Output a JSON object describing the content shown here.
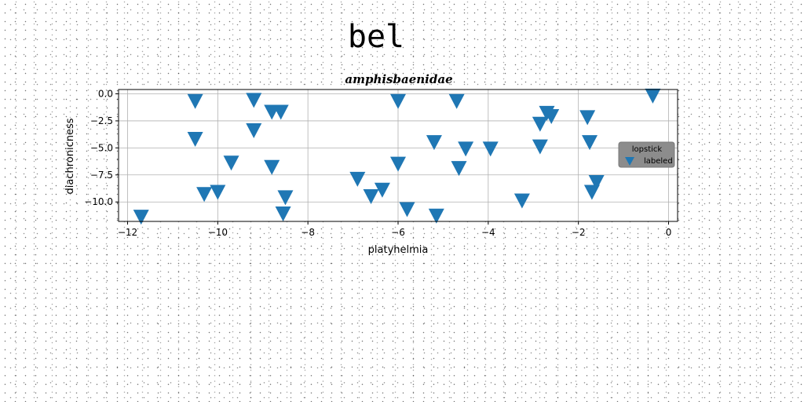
{
  "suptitle": "bel",
  "chart_data": {
    "type": "scatter",
    "title": "amphisbaenidae",
    "xlabel": "platyhelmia",
    "ylabel": "diachronicness",
    "xlim": [
      -12.2,
      0.2
    ],
    "ylim": [
      -11.8,
      0.4
    ],
    "xticks": [
      -12,
      -10,
      -8,
      -6,
      -4,
      -2,
      0
    ],
    "yticks": [
      0.0,
      -2.5,
      -5.0,
      -7.5,
      -10.0
    ],
    "xtick_labels": [
      "−12",
      "−10",
      "−8",
      "−6",
      "−4",
      "−2",
      "0"
    ],
    "ytick_labels": [
      "0.0",
      "−2.5",
      "−5.0",
      "−7.5",
      "−10.0"
    ],
    "grid": true,
    "marker": "triangle-down",
    "color": "#1f77b4",
    "legend": {
      "title": "lopstick",
      "placement": "center-right",
      "background": "#8c8c8c"
    },
    "series": [
      {
        "name": "labeled",
        "points": [
          [
            -11.7,
            -11.3
          ],
          [
            -10.5,
            -0.6
          ],
          [
            -10.5,
            -4.1
          ],
          [
            -10.3,
            -9.2
          ],
          [
            -10.0,
            -9.0
          ],
          [
            -9.7,
            -6.3
          ],
          [
            -9.2,
            -0.5
          ],
          [
            -9.2,
            -3.3
          ],
          [
            -8.8,
            -1.6
          ],
          [
            -8.8,
            -6.7
          ],
          [
            -8.6,
            -1.6
          ],
          [
            -8.5,
            -9.5
          ],
          [
            -8.55,
            -11.0
          ],
          [
            -6.9,
            -7.8
          ],
          [
            -6.6,
            -9.4
          ],
          [
            -6.35,
            -8.8
          ],
          [
            -6.0,
            -0.6
          ],
          [
            -6.0,
            -6.4
          ],
          [
            -5.8,
            -10.6
          ],
          [
            -5.2,
            -4.4
          ],
          [
            -5.15,
            -11.2
          ],
          [
            -4.7,
            -0.6
          ],
          [
            -4.65,
            -6.8
          ],
          [
            -4.5,
            -5.0
          ],
          [
            -3.95,
            -5.0
          ],
          [
            -3.25,
            -9.8
          ],
          [
            -2.85,
            -4.8
          ],
          [
            -2.85,
            -2.7
          ],
          [
            -2.7,
            -1.7
          ],
          [
            -2.6,
            -2.0
          ],
          [
            -1.8,
            -2.1
          ],
          [
            -1.75,
            -4.4
          ],
          [
            -1.7,
            -9.0
          ],
          [
            -1.6,
            -8.1
          ],
          [
            -0.35,
            -0.1
          ]
        ]
      }
    ]
  }
}
